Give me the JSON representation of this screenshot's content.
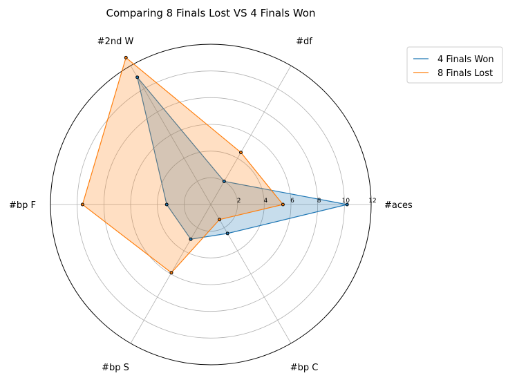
{
  "chart_data": {
    "type": "radar",
    "title": "Comparing 8 Finals Lost VS 4 Finals Won",
    "categories": [
      "#aces",
      "#df",
      "#2nd W",
      "#bp F",
      "#bp S",
      "#bp C"
    ],
    "rlim": [
      0,
      12
    ],
    "rticks": [
      "2",
      "4",
      "6",
      "8",
      "10",
      "12"
    ],
    "grid": true,
    "legend_position": "top-right (outside plot)",
    "series": [
      {
        "name": "4 Finals Won",
        "color": "#1f77b4",
        "values": [
          10.2,
          2.0,
          11.0,
          3.3,
          3.0,
          2.5
        ]
      },
      {
        "name": "8 Finals Lost",
        "color": "#ff7f0e",
        "values": [
          5.4,
          4.5,
          12.7,
          9.6,
          5.9,
          1.3
        ]
      }
    ]
  }
}
